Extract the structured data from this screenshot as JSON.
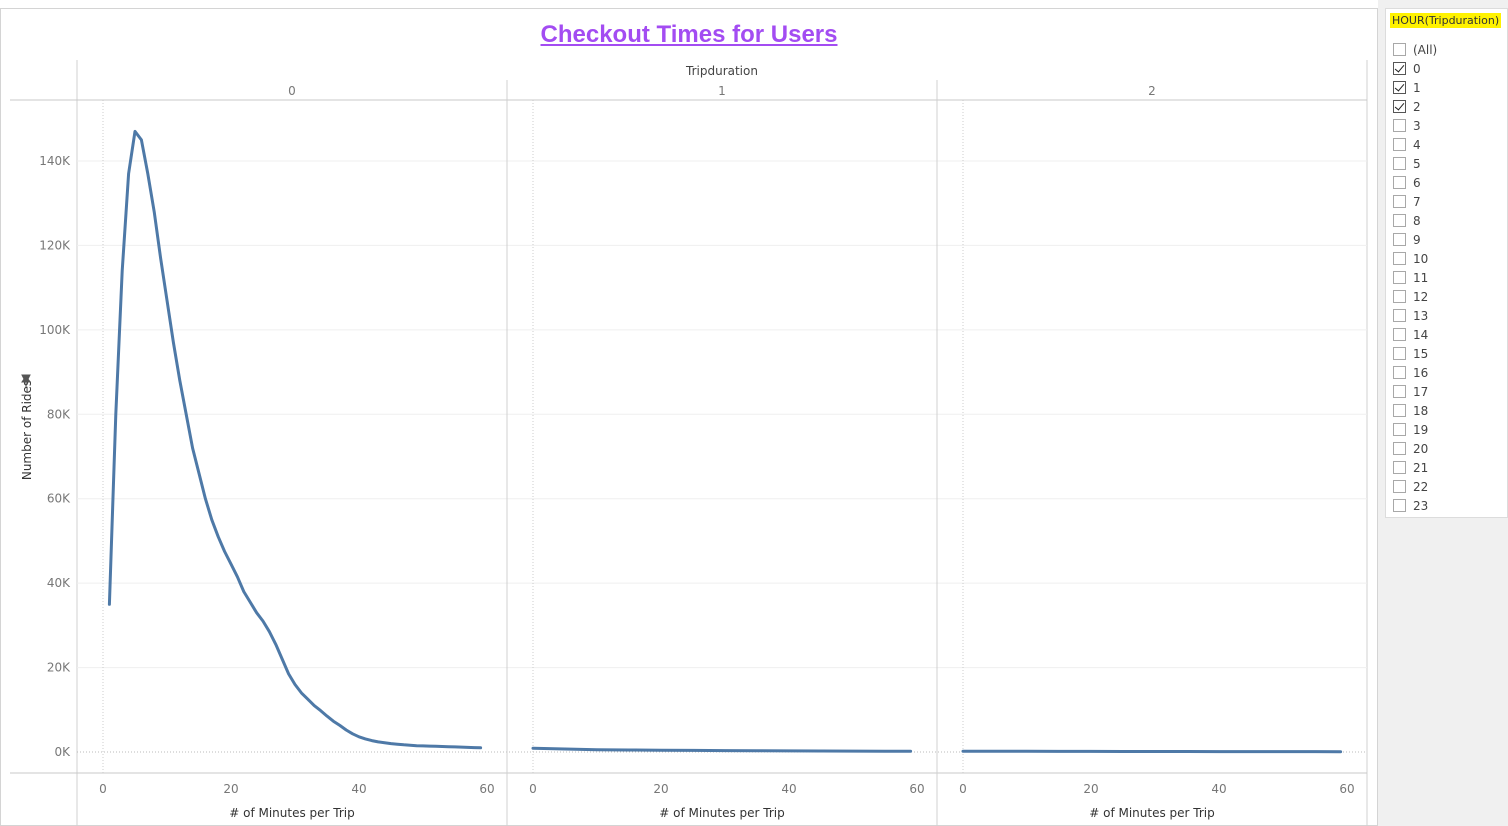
{
  "dashboard": {
    "title": "Checkout Times for Users"
  },
  "chart_data": {
    "type": "line",
    "column_header": "Tripduration",
    "xlabel": "# of Minutes per Trip",
    "ylabel": "Number of Rides",
    "xlim": [
      0,
      60
    ],
    "ylim": [
      0,
      150000
    ],
    "y_ticks": [
      "0K",
      "20K",
      "40K",
      "60K",
      "80K",
      "100K",
      "120K",
      "140K"
    ],
    "x_ticks": [
      "0",
      "20",
      "40",
      "60"
    ],
    "grid": true,
    "line_color": "#4e79a7",
    "panels": [
      {
        "label": "0",
        "x": [
          1,
          2,
          3,
          4,
          5,
          6,
          7,
          8,
          9,
          10,
          11,
          12,
          13,
          14,
          15,
          16,
          17,
          18,
          19,
          20,
          21,
          22,
          23,
          24,
          25,
          26,
          27,
          28,
          29,
          30,
          31,
          32,
          33,
          34,
          35,
          36,
          37,
          38,
          39,
          40,
          41,
          42,
          43,
          44,
          45,
          46,
          47,
          48,
          49,
          50,
          51,
          52,
          53,
          54,
          55,
          56,
          57,
          58,
          59
        ],
        "y": [
          35000,
          80000,
          114000,
          137000,
          147000,
          145000,
          137000,
          128000,
          117000,
          107000,
          97000,
          88000,
          80000,
          72000,
          66000,
          60000,
          55000,
          51000,
          47500,
          44500,
          41500,
          38000,
          35500,
          33000,
          31000,
          28500,
          25500,
          22000,
          18500,
          16000,
          14000,
          12500,
          11000,
          9800,
          8500,
          7300,
          6300,
          5200,
          4300,
          3600,
          3100,
          2700,
          2400,
          2200,
          2000,
          1850,
          1700,
          1600,
          1500,
          1450,
          1400,
          1350,
          1300,
          1250,
          1200,
          1150,
          1100,
          1050,
          1000
        ]
      },
      {
        "label": "1",
        "x": [
          0,
          5,
          10,
          15,
          20,
          25,
          30,
          35,
          40,
          45,
          50,
          55,
          59
        ],
        "y": [
          900,
          700,
          550,
          480,
          420,
          380,
          340,
          300,
          270,
          240,
          220,
          200,
          180
        ]
      },
      {
        "label": "2",
        "x": [
          0,
          5,
          10,
          15,
          20,
          25,
          30,
          35,
          40,
          45,
          50,
          55,
          59
        ],
        "y": [
          200,
          180,
          160,
          150,
          140,
          130,
          120,
          110,
          100,
          95,
          90,
          85,
          80
        ]
      }
    ]
  },
  "filter": {
    "title": "HOUR(Tripduration)",
    "items": [
      {
        "label": "(All)",
        "checked": false
      },
      {
        "label": "0",
        "checked": true
      },
      {
        "label": "1",
        "checked": true
      },
      {
        "label": "2",
        "checked": true
      },
      {
        "label": "3",
        "checked": false
      },
      {
        "label": "4",
        "checked": false
      },
      {
        "label": "5",
        "checked": false
      },
      {
        "label": "6",
        "checked": false
      },
      {
        "label": "7",
        "checked": false
      },
      {
        "label": "8",
        "checked": false
      },
      {
        "label": "9",
        "checked": false
      },
      {
        "label": "10",
        "checked": false
      },
      {
        "label": "11",
        "checked": false
      },
      {
        "label": "12",
        "checked": false
      },
      {
        "label": "13",
        "checked": false
      },
      {
        "label": "14",
        "checked": false
      },
      {
        "label": "15",
        "checked": false
      },
      {
        "label": "16",
        "checked": false
      },
      {
        "label": "17",
        "checked": false
      },
      {
        "label": "18",
        "checked": false
      },
      {
        "label": "19",
        "checked": false
      },
      {
        "label": "20",
        "checked": false
      },
      {
        "label": "21",
        "checked": false
      },
      {
        "label": "22",
        "checked": false
      },
      {
        "label": "23",
        "checked": false
      }
    ]
  }
}
